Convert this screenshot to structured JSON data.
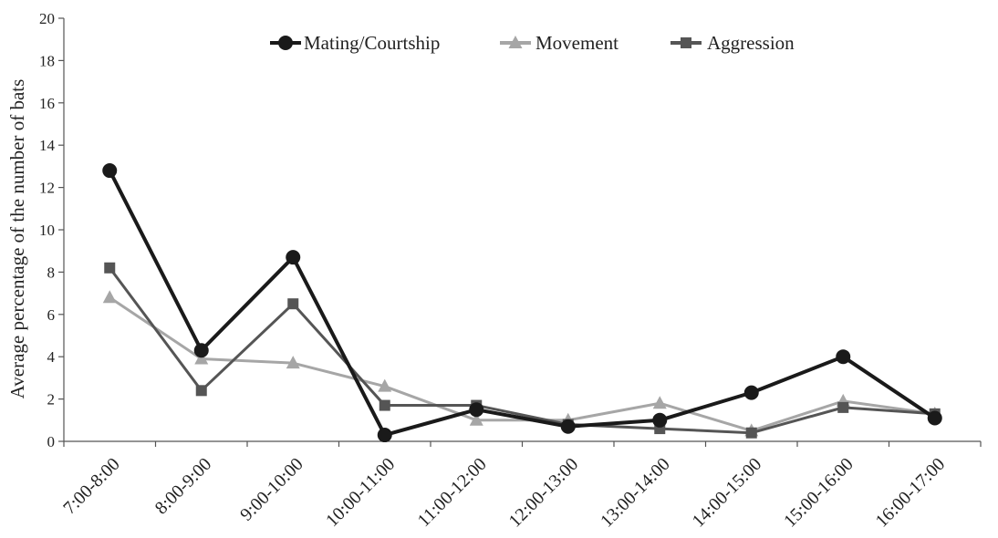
{
  "chart_data": {
    "type": "line",
    "title": "",
    "xlabel": "",
    "ylabel": "Average percentage of the number of bats",
    "ylim": [
      0,
      20
    ],
    "yticks": [
      "0",
      "2",
      "4",
      "6",
      "8",
      "10",
      "12",
      "14",
      "16",
      "18",
      "20"
    ],
    "categories": [
      "7:00-8:00",
      "8:00-9:00",
      "9:00-10:00",
      "10:00-11:00",
      "11:00-12:00",
      "12:00-13:00",
      "13:00-14:00",
      "14:00-15:00",
      "15:00-16:00",
      "16:00-17:00"
    ],
    "grid": false,
    "legend": "top-center",
    "series": [
      {
        "name": "Mating/Courtship",
        "color": "#1a1a1a",
        "marker": "circle",
        "values": [
          12.8,
          4.3,
          8.7,
          0.3,
          1.5,
          0.7,
          1.0,
          2.3,
          4.0,
          1.1
        ]
      },
      {
        "name": "Movement",
        "color": "#a6a6a6",
        "marker": "triangle",
        "values": [
          6.8,
          3.9,
          3.7,
          2.6,
          1.0,
          1.0,
          1.8,
          0.5,
          1.9,
          1.3
        ]
      },
      {
        "name": "Aggression",
        "color": "#555555",
        "marker": "square",
        "values": [
          8.2,
          2.4,
          6.5,
          1.7,
          1.7,
          0.8,
          0.6,
          0.4,
          1.6,
          1.3
        ]
      }
    ]
  }
}
